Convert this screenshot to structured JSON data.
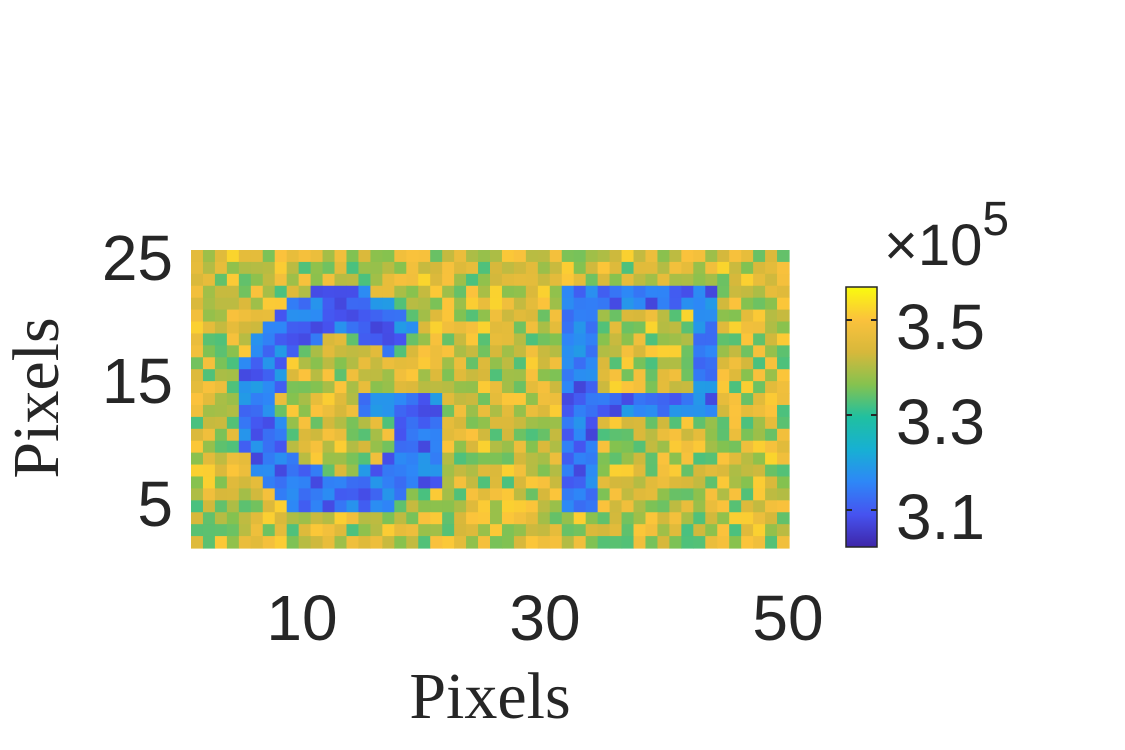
{
  "chart_data": {
    "type": "heatmap",
    "xlabel": "Pixels",
    "ylabel": "Pixels",
    "xlim": [
      0.5,
      50.5
    ],
    "ylim": [
      0.5,
      25.5
    ],
    "x_ticks": [
      "10",
      "30",
      "50"
    ],
    "y_ticks": [
      "25",
      "15",
      "5"
    ],
    "colorbar": {
      "multiplier": "×10",
      "exponent": "5",
      "ticks": [
        "3.5",
        "3.3",
        "3.1"
      ],
      "range": [
        3.03,
        3.63
      ],
      "colormap": "parula"
    },
    "description_values": {
      "background_level": 3.47,
      "letter_level": 3.15,
      "letters": [
        "G",
        "P"
      ]
    },
    "grid": false,
    "legend": "colorbar-right"
  },
  "colors": {
    "axis": "#262626",
    "colormap_stops": [
      "#3e26a8",
      "#4653f0",
      "#2e87f7",
      "#17b0d3",
      "#20c0a0",
      "#85c24f",
      "#d7b83b",
      "#fbc23c",
      "#f9fb0e"
    ]
  }
}
